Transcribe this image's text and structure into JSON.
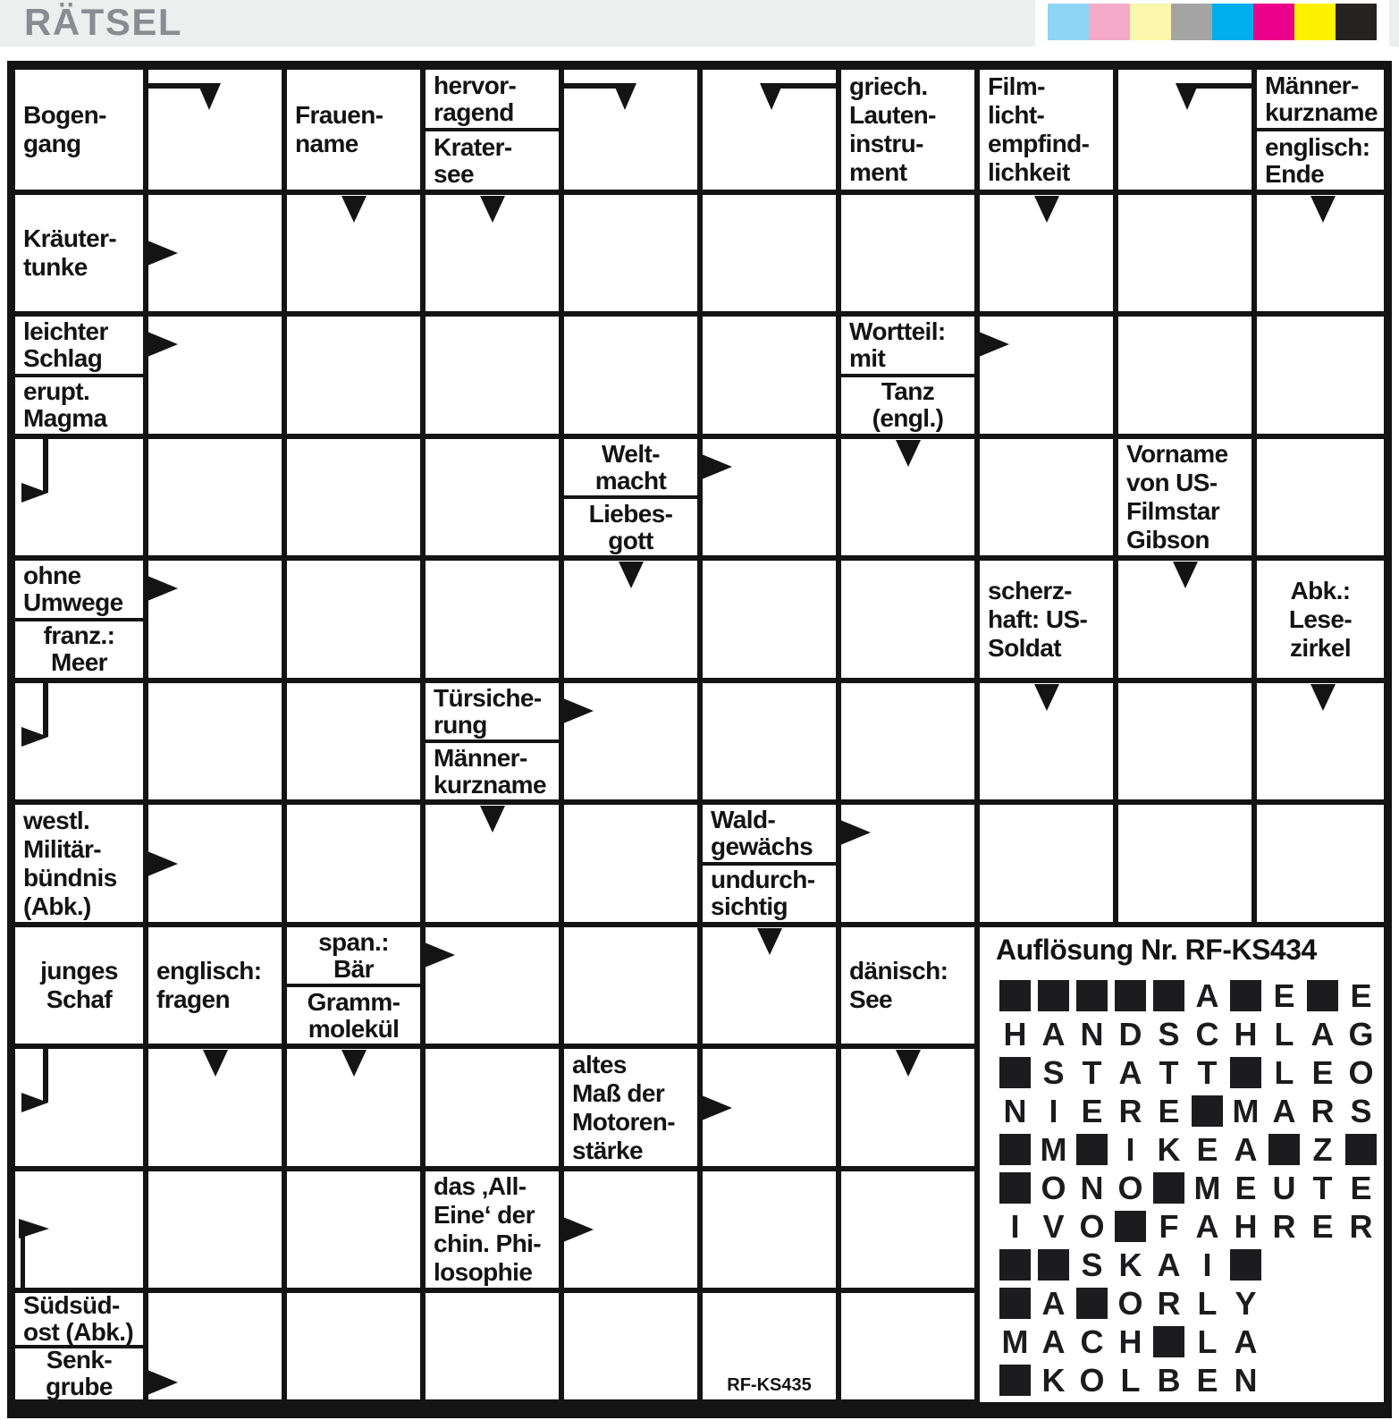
{
  "header": {
    "title": "RÄTSEL",
    "calibration_swatches": [
      {
        "name": "light-blue",
        "color": "#8ed4f5"
      },
      {
        "name": "pink",
        "color": "#f5aac9"
      },
      {
        "name": "pale-yellow",
        "color": "#fbf7ac"
      },
      {
        "name": "gray",
        "color": "#a4a4a4"
      },
      {
        "name": "cyan",
        "color": "#00aeef"
      },
      {
        "name": "magenta",
        "color": "#eb008b"
      },
      {
        "name": "yellow",
        "color": "#fff200"
      },
      {
        "name": "black",
        "color": "#262220"
      }
    ]
  },
  "grid": {
    "cols": [
      8,
      163,
      318,
      473,
      628,
      783,
      938,
      1093,
      1248,
      1403,
      1557
    ],
    "rows": [
      68,
      215,
      351,
      488,
      624,
      761,
      897,
      1034,
      1170,
      1307,
      1443,
      1580
    ]
  },
  "clues": [
    {
      "c": 0,
      "r": 0,
      "pos": "full",
      "align": "left",
      "lines": [
        "Bogen-",
        "gang"
      ]
    },
    {
      "c": 2,
      "r": 0,
      "pos": "full",
      "align": "left",
      "lines": [
        "Frauen-",
        "name"
      ]
    },
    {
      "c": 3,
      "r": 0,
      "pos": "top",
      "align": "left",
      "lines": [
        "hervor-",
        "ragend"
      ]
    },
    {
      "c": 3,
      "r": 0,
      "pos": "bottom",
      "align": "left",
      "lines": [
        "Krater-",
        "see"
      ]
    },
    {
      "c": 6,
      "r": 0,
      "pos": "full",
      "align": "left",
      "lines": [
        "griech.",
        "Lauten-",
        "instru-",
        "ment"
      ]
    },
    {
      "c": 7,
      "r": 0,
      "pos": "full",
      "align": "left",
      "lines": [
        "Film-",
        "licht-",
        "empfind-",
        "lichkeit"
      ]
    },
    {
      "c": 9,
      "r": 0,
      "pos": "top",
      "align": "left",
      "lines": [
        "Männer-",
        "kurzname"
      ]
    },
    {
      "c": 9,
      "r": 0,
      "pos": "bottom",
      "align": "left",
      "lines": [
        "englisch:",
        "Ende"
      ]
    },
    {
      "c": 0,
      "r": 1,
      "pos": "full",
      "align": "left",
      "lines": [
        "Kräuter-",
        "tunke"
      ]
    },
    {
      "c": 0,
      "r": 2,
      "pos": "top",
      "align": "left",
      "lines": [
        "leichter",
        "Schlag"
      ]
    },
    {
      "c": 0,
      "r": 2,
      "pos": "bottom",
      "align": "left",
      "lines": [
        "erupt.",
        "Magma"
      ]
    },
    {
      "c": 6,
      "r": 2,
      "pos": "top",
      "align": "left",
      "lines": [
        "Wortteil:",
        "mit"
      ]
    },
    {
      "c": 6,
      "r": 2,
      "pos": "bottom",
      "align": "center",
      "lines": [
        "Tanz",
        "(engl.)"
      ]
    },
    {
      "c": 4,
      "r": 3,
      "pos": "top",
      "align": "center",
      "lines": [
        "Welt-",
        "macht"
      ]
    },
    {
      "c": 4,
      "r": 3,
      "pos": "bottom",
      "align": "center",
      "lines": [
        "Liebes-",
        "gott"
      ]
    },
    {
      "c": 8,
      "r": 3,
      "pos": "full",
      "align": "left",
      "lines": [
        "Vorname",
        "von US-",
        "Filmstar",
        "Gibson"
      ]
    },
    {
      "c": 0,
      "r": 4,
      "pos": "top",
      "align": "left",
      "lines": [
        "ohne",
        "Umwege"
      ]
    },
    {
      "c": 0,
      "r": 4,
      "pos": "bottom",
      "align": "center",
      "lines": [
        "franz.:",
        "Meer"
      ]
    },
    {
      "c": 7,
      "r": 4,
      "pos": "full",
      "align": "left",
      "lines": [
        "scherz-",
        "haft: US-",
        "Soldat"
      ]
    },
    {
      "c": 9,
      "r": 4,
      "pos": "full",
      "align": "center",
      "lines": [
        "Abk.:",
        "Lese-",
        "zirkel"
      ]
    },
    {
      "c": 3,
      "r": 5,
      "pos": "top",
      "align": "left",
      "lines": [
        "Türsiche-",
        "rung"
      ]
    },
    {
      "c": 3,
      "r": 5,
      "pos": "bottom",
      "align": "left",
      "lines": [
        "Männer-",
        "kurzname"
      ]
    },
    {
      "c": 0,
      "r": 6,
      "pos": "full",
      "align": "left",
      "lines": [
        "westl.",
        "Militär-",
        "bündnis",
        "(Abk.)"
      ]
    },
    {
      "c": 5,
      "r": 6,
      "pos": "top",
      "align": "left",
      "lines": [
        "Wald-",
        "gewächs"
      ]
    },
    {
      "c": 5,
      "r": 6,
      "pos": "bottom",
      "align": "left",
      "lines": [
        "undurch-",
        "sichtig"
      ]
    },
    {
      "c": 0,
      "r": 7,
      "pos": "full",
      "align": "center",
      "lines": [
        "junges",
        "Schaf"
      ]
    },
    {
      "c": 1,
      "r": 7,
      "pos": "full",
      "align": "left",
      "lines": [
        "englisch:",
        "fragen"
      ]
    },
    {
      "c": 2,
      "r": 7,
      "pos": "top",
      "align": "center",
      "lines": [
        "span.:",
        "Bär"
      ]
    },
    {
      "c": 2,
      "r": 7,
      "pos": "bottom",
      "align": "center",
      "lines": [
        "Gramm-",
        "molekül"
      ]
    },
    {
      "c": 6,
      "r": 7,
      "pos": "full",
      "align": "left",
      "lines": [
        "dänisch:",
        "See"
      ]
    },
    {
      "c": 4,
      "r": 8,
      "pos": "full",
      "align": "left",
      "lines": [
        "altes",
        "Maß der",
        "Motoren-",
        "stärke"
      ]
    },
    {
      "c": 3,
      "r": 9,
      "pos": "full",
      "align": "left",
      "lines": [
        "das ‚All-",
        "Eine‘ der",
        "chin. Phi-",
        "losophie"
      ]
    },
    {
      "c": 0,
      "r": 10,
      "pos": "top",
      "align": "left",
      "lines": [
        "Südsüd-",
        "ost (Abk.)"
      ]
    },
    {
      "c": 0,
      "r": 10,
      "pos": "bottom",
      "align": "center",
      "lines": [
        "Senk-",
        "grube"
      ]
    }
  ],
  "arrows": [
    {
      "type": "flag-down-left",
      "c": 1,
      "r": 0
    },
    {
      "type": "flag-down-left",
      "c": 4,
      "r": 0
    },
    {
      "type": "flag-down-right",
      "c": 5,
      "r": 0
    },
    {
      "type": "flag-down-right",
      "c": 8,
      "r": 0
    },
    {
      "type": "right",
      "c": 1,
      "r": 1,
      "slot": "mid"
    },
    {
      "type": "down",
      "c": 2,
      "r": 1
    },
    {
      "type": "down",
      "c": 3,
      "r": 1
    },
    {
      "type": "down",
      "c": 7,
      "r": 1
    },
    {
      "type": "down",
      "c": 9,
      "r": 1
    },
    {
      "type": "right",
      "c": 1,
      "r": 2,
      "slot": "top"
    },
    {
      "type": "right",
      "c": 7,
      "r": 2,
      "slot": "top"
    },
    {
      "type": "bend-right",
      "c": 0,
      "r": 3
    },
    {
      "type": "right",
      "c": 5,
      "r": 3,
      "slot": "top"
    },
    {
      "type": "down",
      "c": 6,
      "r": 3
    },
    {
      "type": "right",
      "c": 1,
      "r": 4,
      "slot": "top"
    },
    {
      "type": "down",
      "c": 4,
      "r": 4
    },
    {
      "type": "down",
      "c": 8,
      "r": 4
    },
    {
      "type": "bend-right",
      "c": 0,
      "r": 5
    },
    {
      "type": "right",
      "c": 4,
      "r": 5,
      "slot": "top"
    },
    {
      "type": "down",
      "c": 7,
      "r": 5
    },
    {
      "type": "down",
      "c": 9,
      "r": 5
    },
    {
      "type": "right",
      "c": 1,
      "r": 6,
      "slot": "mid"
    },
    {
      "type": "right",
      "c": 6,
      "r": 6,
      "slot": "top"
    },
    {
      "type": "down",
      "c": 3,
      "r": 6
    },
    {
      "type": "right",
      "c": 3,
      "r": 7,
      "slot": "top"
    },
    {
      "type": "down",
      "c": 5,
      "r": 7
    },
    {
      "type": "bend-right",
      "c": 0,
      "r": 8
    },
    {
      "type": "right",
      "c": 5,
      "r": 8,
      "slot": "mid"
    },
    {
      "type": "down",
      "c": 1,
      "r": 8
    },
    {
      "type": "down",
      "c": 2,
      "r": 8
    },
    {
      "type": "down",
      "c": 6,
      "r": 8
    },
    {
      "type": "flag-up-right",
      "c": 0,
      "r": 9
    },
    {
      "type": "right",
      "c": 4,
      "r": 9,
      "slot": "mid"
    },
    {
      "type": "right",
      "c": 1,
      "r": 10,
      "slot": "bottom"
    }
  ],
  "solution": {
    "title": "Auflösung Nr. RF-KS434",
    "grid": [
      [
        "#",
        "#",
        "#",
        "#",
        "#",
        "A",
        "#",
        "E",
        "#",
        "E"
      ],
      [
        "H",
        "A",
        "N",
        "D",
        "S",
        "C",
        "H",
        "L",
        "A",
        "G"
      ],
      [
        "#",
        "S",
        "T",
        "A",
        "T",
        "T",
        "#",
        "L",
        "E",
        "O"
      ],
      [
        "N",
        "I",
        "E",
        "R",
        "E",
        "#",
        "M",
        "A",
        "R",
        "S"
      ],
      [
        "#",
        "M",
        "#",
        "I",
        "K",
        "E",
        "A",
        "#",
        "Z",
        "#"
      ],
      [
        "#",
        "O",
        "N",
        "O",
        "#",
        "M",
        "E",
        "U",
        "T",
        "E"
      ],
      [
        "I",
        "V",
        "O",
        "#",
        "F",
        "A",
        "H",
        "R",
        "E",
        "R"
      ],
      [
        "#",
        "#",
        "S",
        "K",
        "A",
        "I",
        "#"
      ],
      [
        "#",
        "A",
        "#",
        "O",
        "R",
        "L",
        "Y"
      ],
      [
        "M",
        "A",
        "C",
        "H",
        "#",
        "L",
        "A"
      ],
      [
        "#",
        "K",
        "O",
        "L",
        "B",
        "E",
        "N"
      ]
    ]
  },
  "puzzle_code": "RF-KS435"
}
